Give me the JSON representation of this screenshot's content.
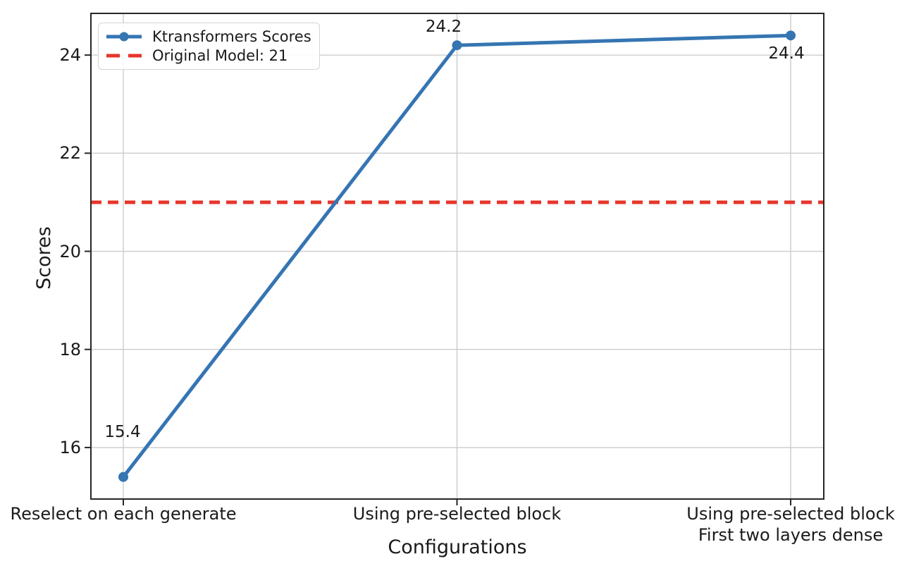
{
  "chart_data": {
    "type": "line",
    "title": "",
    "xlabel": "Configurations",
    "ylabel": "Scores",
    "categories": [
      "Reselect on each generate",
      "Using pre-selected block",
      "Using pre-selected block\nFirst two layers dense"
    ],
    "xtick_lines": [
      [
        "Reselect on each generate",
        ""
      ],
      [
        "Using pre-selected block",
        ""
      ],
      [
        "Using pre-selected block",
        "First two layers dense"
      ]
    ],
    "series": [
      {
        "name": "Ktransformers Scores",
        "values": [
          15.4,
          24.2,
          24.4
        ],
        "color": "#3575b2",
        "marker": "circle",
        "line_style": "solid"
      }
    ],
    "reference_line": {
      "label": "Original Model: 21",
      "value": 21,
      "color": "#e6352b",
      "line_style": "dashed"
    },
    "annotations": [
      "15.4",
      "24.2",
      "24.4"
    ],
    "yticks": [
      16,
      18,
      20,
      22,
      24
    ],
    "ytick_labels": [
      "16",
      "18",
      "20",
      "22",
      "24"
    ],
    "ylim": [
      14.95,
      24.85
    ],
    "grid": true,
    "grid_color": "#cccccc",
    "spine_color": "#262626",
    "text_color": "#1a1a1a",
    "legend_position": "upper left"
  }
}
